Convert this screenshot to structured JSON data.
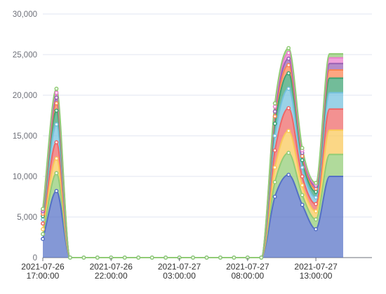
{
  "chart_data": {
    "type": "area",
    "stacked": true,
    "smooth": true,
    "grid": "horizontal",
    "legend": "none",
    "x_ticks": [
      {
        "index": 0,
        "line1": "2021-07-26",
        "line2": "17:00:00"
      },
      {
        "index": 5,
        "line1": "2021-07-26",
        "line2": "22:00:00"
      },
      {
        "index": 10,
        "line1": "2021-07-27",
        "line2": "03:00:00"
      },
      {
        "index": 15,
        "line1": "2021-07-27",
        "line2": "08:00:00"
      },
      {
        "index": 20,
        "line1": "2021-07-27",
        "line2": "13:00:00"
      }
    ],
    "y_ticks": [
      "0",
      "5,000",
      "10,000",
      "15,000",
      "20,000",
      "25,000",
      "30,000"
    ],
    "ylim": [
      0,
      30000
    ],
    "x_count": 23,
    "markers_until_index": 20,
    "series": [
      {
        "color": "#5470c6",
        "values": [
          2300,
          8200,
          0,
          0,
          0,
          0,
          0,
          0,
          0,
          0,
          0,
          0,
          0,
          0,
          0,
          0,
          0,
          7500,
          10200,
          6500,
          3500,
          10000,
          10000
        ]
      },
      {
        "color": "#91cc75",
        "values": [
          600,
          2200,
          0,
          0,
          0,
          0,
          0,
          0,
          0,
          0,
          0,
          0,
          0,
          0,
          0,
          0,
          0,
          1800,
          2700,
          1200,
          1200,
          2700,
          2700
        ]
      },
      {
        "color": "#fac858",
        "values": [
          600,
          1800,
          0,
          0,
          0,
          0,
          0,
          0,
          0,
          0,
          0,
          0,
          0,
          0,
          0,
          0,
          0,
          1800,
          2700,
          1200,
          1000,
          3000,
          3000
        ]
      },
      {
        "color": "#ee6666",
        "values": [
          700,
          2000,
          0,
          0,
          0,
          0,
          0,
          0,
          0,
          0,
          0,
          0,
          0,
          0,
          0,
          0,
          0,
          2100,
          2800,
          1100,
          900,
          2600,
          2600
        ]
      },
      {
        "color": "#73c0de",
        "values": [
          500,
          2200,
          0,
          0,
          0,
          0,
          0,
          0,
          0,
          0,
          0,
          0,
          0,
          0,
          0,
          0,
          0,
          1800,
          2400,
          1100,
          800,
          2000,
          2000
        ]
      },
      {
        "color": "#3ba272",
        "values": [
          400,
          1700,
          0,
          0,
          0,
          0,
          0,
          0,
          0,
          0,
          0,
          0,
          0,
          0,
          0,
          0,
          0,
          1500,
          1900,
          900,
          700,
          1800,
          1800
        ]
      },
      {
        "color": "#fc8452",
        "values": [
          300,
          900,
          0,
          0,
          0,
          0,
          0,
          0,
          0,
          0,
          0,
          0,
          0,
          0,
          0,
          0,
          0,
          900,
          1000,
          500,
          400,
          1000,
          1000
        ]
      },
      {
        "color": "#9a60b4",
        "values": [
          300,
          700,
          0,
          0,
          0,
          0,
          0,
          0,
          0,
          0,
          0,
          0,
          0,
          0,
          0,
          0,
          0,
          600,
          800,
          400,
          300,
          800,
          800
        ]
      },
      {
        "color": "#ea7ccc",
        "values": [
          200,
          600,
          0,
          0,
          0,
          0,
          0,
          0,
          0,
          0,
          0,
          0,
          0,
          0,
          0,
          0,
          0,
          600,
          700,
          300,
          200,
          700,
          700
        ]
      },
      {
        "color": "#91cc75",
        "values": [
          100,
          500,
          0,
          0,
          0,
          0,
          0,
          0,
          0,
          0,
          0,
          0,
          0,
          0,
          0,
          0,
          0,
          400,
          600,
          300,
          200,
          500,
          500
        ]
      }
    ]
  }
}
